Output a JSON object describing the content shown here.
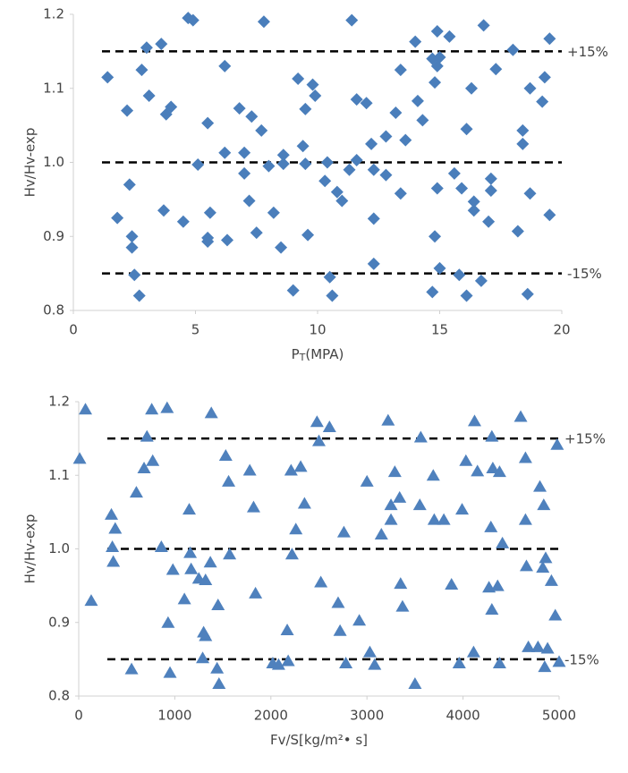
{
  "chart_data": [
    {
      "type": "scatter",
      "y_label": "Hv/Hv-exp",
      "x_label": [
        "P",
        "T",
        "(MPA)"
      ],
      "xlim": [
        0,
        20
      ],
      "xticks": [
        0,
        5,
        10,
        15,
        20
      ],
      "ylim": [
        0.8,
        1.2
      ],
      "yticks": [
        0.8,
        0.9,
        {
          "value": 1,
          "label": "1.0"
        },
        1.1,
        1.2
      ],
      "marker": "diamond",
      "color": "#4a7ebb",
      "ref_lines": [
        1.15,
        1,
        0.85
      ],
      "annotations": [
        {
          "text": "+15%",
          "y": 1.15
        },
        {
          "text": "-15%",
          "y": 0.85
        }
      ],
      "x": [
        1.4,
        1.8,
        2.2,
        2.3,
        2.4,
        2.4,
        2.5,
        2.7,
        2.8,
        3.0,
        3.1,
        3.6,
        3.7,
        3.8,
        4.0,
        4.5,
        4.7,
        4.9,
        5.1,
        5.5,
        5.6,
        5.5,
        5.5,
        6.2,
        6.2,
        6.3,
        6.8,
        7.0,
        7.0,
        7.2,
        7.3,
        7.5,
        7.7,
        7.8,
        8.0,
        8.2,
        8.5,
        8.6,
        8.6,
        9.0,
        9.2,
        9.4,
        9.5,
        9.5,
        9.6,
        9.8,
        9.9,
        10.3,
        10.4,
        10.5,
        10.6,
        10.8,
        11.0,
        11.3,
        11.4,
        11.6,
        11.6,
        12.0,
        12.2,
        12.3,
        12.3,
        12.3,
        12.8,
        12.8,
        13.2,
        13.4,
        13.4,
        13.6,
        14.0,
        14.1,
        14.3,
        14.7,
        14.8,
        14.8,
        14.7,
        14.9,
        14.9,
        15.0,
        14.9,
        15.0,
        15.4,
        15.6,
        15.8,
        15.9,
        16.1,
        16.1,
        16.3,
        16.4,
        16.4,
        16.7,
        16.8,
        17.0,
        17.1,
        17.1,
        17.3,
        18.0,
        18.2,
        18.4,
        18.4,
        18.6,
        18.7,
        18.7,
        19.2,
        19.3,
        19.5,
        19.5
      ],
      "y": [
        1.115,
        0.925,
        1.07,
        0.97,
        0.9,
        0.885,
        0.848,
        0.82,
        1.125,
        1.155,
        1.09,
        1.16,
        0.935,
        1.065,
        1.075,
        0.92,
        1.195,
        1.192,
        0.997,
        1.053,
        0.932,
        0.898,
        0.893,
        1.13,
        1.013,
        0.895,
        1.073,
        1.013,
        0.985,
        0.948,
        1.062,
        0.905,
        1.043,
        1.19,
        0.995,
        0.932,
        0.885,
        1.01,
        0.998,
        0.827,
        1.113,
        1.022,
        0.998,
        1.072,
        0.902,
        1.105,
        1.09,
        0.975,
        1.0,
        0.845,
        0.82,
        0.96,
        0.948,
        0.99,
        1.192,
        1.003,
        1.085,
        1.08,
        1.025,
        0.99,
        0.924,
        0.863,
        1.035,
        0.983,
        1.067,
        1.125,
        0.958,
        1.03,
        1.163,
        1.083,
        1.057,
        1.14,
        1.108,
        0.9,
        0.825,
        1.13,
        1.177,
        1.142,
        0.965,
        0.857,
        1.17,
        0.985,
        0.848,
        0.965,
        0.82,
        1.045,
        1.1,
        0.935,
        0.947,
        0.84,
        1.185,
        0.92,
        0.978,
        0.962,
        1.126,
        1.152,
        0.907,
        1.043,
        1.025,
        0.822,
        0.958,
        1.1,
        1.082,
        1.115,
        1.167,
        0.929
      ]
    },
    {
      "type": "scatter",
      "y_label": "Hv/Hv-exp",
      "x_label": [
        "Fv/S[kg/m²• s]"
      ],
      "xlim": [
        0,
        5000
      ],
      "xticks": [
        0,
        1000,
        2000,
        3000,
        4000,
        5000
      ],
      "ylim": [
        0.8,
        1.2
      ],
      "yticks": [
        0.8,
        0.9,
        {
          "value": 1,
          "label": "1.0"
        },
        1.1,
        1.2
      ],
      "marker": "triangle",
      "color": "#4f81bd",
      "ref_lines": [
        1.15,
        1,
        0.85
      ],
      "annotations": [
        {
          "text": "+15%",
          "y": 1.15
        },
        {
          "text": "-15%",
          "y": 0.85
        }
      ],
      "x": [
        10,
        70,
        130,
        340,
        350,
        360,
        380,
        550,
        600,
        680,
        710,
        760,
        770,
        860,
        920,
        930,
        950,
        980,
        1100,
        1150,
        1160,
        1170,
        1250,
        1290,
        1300,
        1320,
        1320,
        1370,
        1380,
        1440,
        1450,
        1460,
        1530,
        1560,
        1570,
        1780,
        1820,
        1840,
        2020,
        2080,
        2170,
        2180,
        2210,
        2220,
        2260,
        2310,
        2350,
        2480,
        2500,
        2520,
        2610,
        2700,
        2720,
        2760,
        2780,
        2920,
        3000,
        3030,
        3080,
        3150,
        3220,
        3250,
        3250,
        3290,
        3340,
        3350,
        3370,
        3500,
        3550,
        3560,
        3690,
        3700,
        3800,
        3880,
        3960,
        3990,
        4030,
        4110,
        4120,
        4150,
        4270,
        4290,
        4300,
        4300,
        4310,
        4360,
        4380,
        4380,
        4410,
        4600,
        4650,
        4650,
        4660,
        4680,
        4780,
        4800,
        4830,
        4840,
        4850,
        4860,
        4880,
        4920,
        4960,
        4980,
        5000
      ],
      "y": [
        1.123,
        1.19,
        0.93,
        1.047,
        1.003,
        0.983,
        1.028,
        0.837,
        1.077,
        1.11,
        1.153,
        1.19,
        1.12,
        1.003,
        1.192,
        0.9,
        0.832,
        0.972,
        0.932,
        1.054,
        0.995,
        0.973,
        0.96,
        0.852,
        0.887,
        0.882,
        0.958,
        0.982,
        1.185,
        0.838,
        0.924,
        0.817,
        1.127,
        1.092,
        0.993,
        1.107,
        1.057,
        0.94,
        0.845,
        0.843,
        0.89,
        0.848,
        1.107,
        0.993,
        1.027,
        1.112,
        1.062,
        1.173,
        1.147,
        0.955,
        1.166,
        0.927,
        0.889,
        1.023,
        0.845,
        0.903,
        1.092,
        0.86,
        0.843,
        1.02,
        1.175,
        1.06,
        1.04,
        1.105,
        1.07,
        0.953,
        0.922,
        0.817,
        1.06,
        1.152,
        1.1,
        1.04,
        1.04,
        0.952,
        0.845,
        1.054,
        1.12,
        0.86,
        1.174,
        1.106,
        0.948,
        1.03,
        1.153,
        0.918,
        1.11,
        0.95,
        1.105,
        0.845,
        1.008,
        1.18,
        1.124,
        1.04,
        0.977,
        0.867,
        0.867,
        1.085,
        0.975,
        1.06,
        0.84,
        0.988,
        0.865,
        0.957,
        0.91,
        1.142,
        0.847
      ]
    }
  ]
}
